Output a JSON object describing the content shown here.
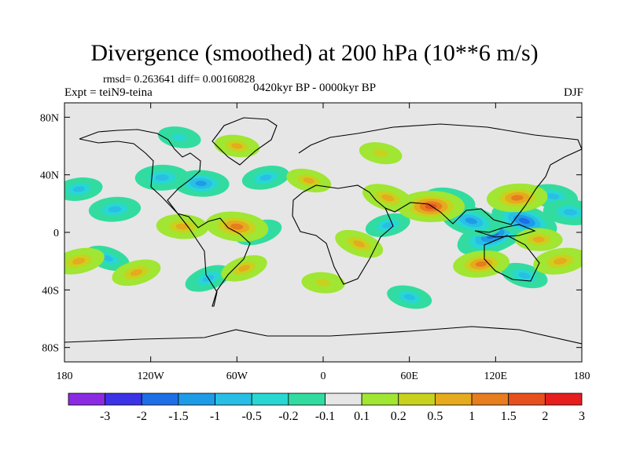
{
  "header": {
    "title": "Divergence (smoothed) at 200 hPa (10**6 m/s)",
    "stats": "rmsd= 0.263641 diff= 0.00160828",
    "experiment": "Expt = teiN9-teina",
    "period": "0420kyr BP - 0000kyr BP",
    "season": "DJF"
  },
  "chart_data": {
    "type": "heatmap",
    "title": "Divergence (smoothed) at 200 hPa (10**6 m/s)",
    "projection": "cylindrical-equidistant",
    "xlim": [
      -180,
      180
    ],
    "ylim": [
      -90,
      90
    ],
    "x_ticks": [
      {
        "value": -180,
        "label": "180"
      },
      {
        "value": -120,
        "label": "120W"
      },
      {
        "value": -60,
        "label": "60W"
      },
      {
        "value": 0,
        "label": "0"
      },
      {
        "value": 60,
        "label": "60E"
      },
      {
        "value": 120,
        "label": "120E"
      },
      {
        "value": 180,
        "label": "180"
      }
    ],
    "y_ticks": [
      {
        "value": 80,
        "label": "80N"
      },
      {
        "value": 40,
        "label": "40N"
      },
      {
        "value": 0,
        "label": "0"
      },
      {
        "value": -40,
        "label": "40S"
      },
      {
        "value": -80,
        "label": "80S"
      }
    ],
    "colorbar": {
      "levels": [
        "-3",
        "-2",
        "-1.5",
        "-1",
        "-0.5",
        "-0.2",
        "-0.1",
        "0.1",
        "0.2",
        "0.5",
        "1",
        "1.5",
        "2",
        "3"
      ],
      "colors": [
        "#8a2be2",
        "#3c32e6",
        "#1e6ee6",
        "#1e9be6",
        "#28bee6",
        "#28d7d2",
        "#32dca0",
        "#e6e6e6",
        "#a0e632",
        "#c8d21e",
        "#e6aa1e",
        "#e67d1e",
        "#e6501e",
        "#e61e1e"
      ]
    },
    "anomalies": [
      {
        "lon": 118,
        "lat": -2,
        "value": -1.8
      },
      {
        "lon": 140,
        "lat": 8,
        "value": -1.5
      },
      {
        "lon": 103,
        "lat": 8,
        "value": -1.2
      },
      {
        "lon": 88,
        "lat": 22,
        "value": -0.8
      },
      {
        "lon": 160,
        "lat": 25,
        "value": -0.7
      },
      {
        "lon": 172,
        "lat": 14,
        "value": -0.9
      },
      {
        "lon": -85,
        "lat": 34,
        "value": -1.0
      },
      {
        "lon": -112,
        "lat": 38,
        "value": -0.9
      },
      {
        "lon": -145,
        "lat": 16,
        "value": -0.8
      },
      {
        "lon": -170,
        "lat": 30,
        "value": -0.6
      },
      {
        "lon": -40,
        "lat": 38,
        "value": -0.6
      },
      {
        "lon": 45,
        "lat": 5,
        "value": -0.5
      },
      {
        "lon": -45,
        "lat": 0,
        "value": -0.6
      },
      {
        "lon": -80,
        "lat": -32,
        "value": -0.6
      },
      {
        "lon": -150,
        "lat": -18,
        "value": -0.5
      },
      {
        "lon": 140,
        "lat": -30,
        "value": -0.6
      },
      {
        "lon": 60,
        "lat": -45,
        "value": -0.5
      },
      {
        "lon": -100,
        "lat": 66,
        "value": -0.4
      },
      {
        "lon": -60,
        "lat": 4,
        "value": 1.3
      },
      {
        "lon": -98,
        "lat": 4,
        "value": 0.8
      },
      {
        "lon": 75,
        "lat": 18,
        "value": 1.5
      },
      {
        "lon": 135,
        "lat": 24,
        "value": 1.2
      },
      {
        "lon": 110,
        "lat": -22,
        "value": 1.0
      },
      {
        "lon": 165,
        "lat": -20,
        "value": 0.9
      },
      {
        "lon": -170,
        "lat": -20,
        "value": 0.8
      },
      {
        "lon": -130,
        "lat": -28,
        "value": 0.7
      },
      {
        "lon": -55,
        "lat": -25,
        "value": 0.6
      },
      {
        "lon": 25,
        "lat": -8,
        "value": 0.7
      },
      {
        "lon": 45,
        "lat": 24,
        "value": 0.8
      },
      {
        "lon": -10,
        "lat": 36,
        "value": 0.5
      },
      {
        "lon": 40,
        "lat": 55,
        "value": 0.4
      },
      {
        "lon": -60,
        "lat": 60,
        "value": 0.5
      },
      {
        "lon": 0,
        "lat": -35,
        "value": 0.4
      },
      {
        "lon": 150,
        "lat": -5,
        "value": 0.6
      }
    ]
  }
}
